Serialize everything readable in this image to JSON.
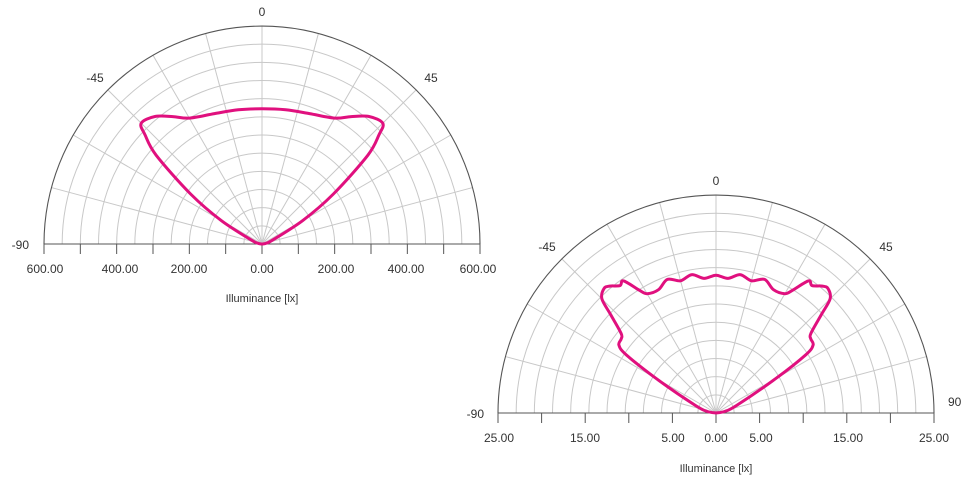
{
  "colors": {
    "curve": "#e0107e",
    "grid": "#c8c8c8",
    "axis": "#555555",
    "text": "#333333"
  },
  "chart_data": [
    {
      "type": "polar-line",
      "title": "",
      "xlabel": "Illuminance [lx]",
      "radial_max": 600,
      "angle_range": [
        -90,
        90
      ],
      "angle_labels": [
        "0",
        "-45",
        "45",
        "-90"
      ],
      "x_tick_labels": [
        "600.00",
        "400.00",
        "200.00",
        "0.00",
        "200.00",
        "400.00",
        "600.00"
      ],
      "grid": true,
      "series": [
        {
          "values_angle_deg": [
            -90,
            -80,
            -70,
            -60,
            -55,
            -50,
            -47,
            -45,
            -40,
            -35,
            -30,
            -20,
            -10,
            0,
            10,
            20,
            30,
            35,
            40,
            45,
            47,
            50,
            55,
            60,
            70,
            80,
            90
          ],
          "values_lx": [
            0,
            10,
            30,
            130,
            240,
            380,
            440,
            470,
            458,
            428,
            400,
            382,
            375,
            372,
            375,
            382,
            400,
            428,
            458,
            470,
            440,
            380,
            240,
            130,
            30,
            10,
            0
          ]
        }
      ]
    },
    {
      "type": "polar-line",
      "title": "",
      "xlabel": "Illuminance [lx]",
      "radial_max": 25,
      "angle_range": [
        -90,
        90
      ],
      "angle_labels": [
        "0",
        "-45",
        "45",
        "-90",
        "90"
      ],
      "x_tick_labels": [
        "25.00",
        "15.00",
        "5.00",
        "0.00",
        "5.00",
        "15.00",
        "25.00"
      ],
      "grid": true,
      "series": [
        {
          "values_angle_deg": [
            -90,
            -80,
            -70,
            -60,
            -57,
            -55,
            -52,
            -50,
            -47,
            -45,
            -42,
            -40,
            -37,
            -35,
            -32,
            -30,
            -25,
            -20,
            -15,
            -10,
            -5,
            0,
            5,
            10,
            15,
            20,
            25,
            30,
            32,
            35,
            37,
            40,
            42,
            45,
            47,
            50,
            52,
            55,
            57,
            60,
            70,
            80,
            90
          ],
          "values_lx": [
            0,
            1,
            2.5,
            8,
            12.3,
            13.6,
            13.8,
            14.2,
            16.5,
            18.5,
            19.2,
            19.0,
            18.3,
            18.5,
            16.6,
            15.8,
            15.6,
            16.3,
            15.7,
            16.1,
            15.5,
            15.8,
            15.5,
            16.1,
            15.7,
            16.3,
            15.6,
            15.8,
            16.6,
            18.5,
            18.3,
            19.0,
            19.2,
            18.5,
            16.5,
            14.2,
            13.8,
            13.6,
            12.3,
            8,
            2.5,
            1,
            0
          ]
        }
      ]
    }
  ]
}
